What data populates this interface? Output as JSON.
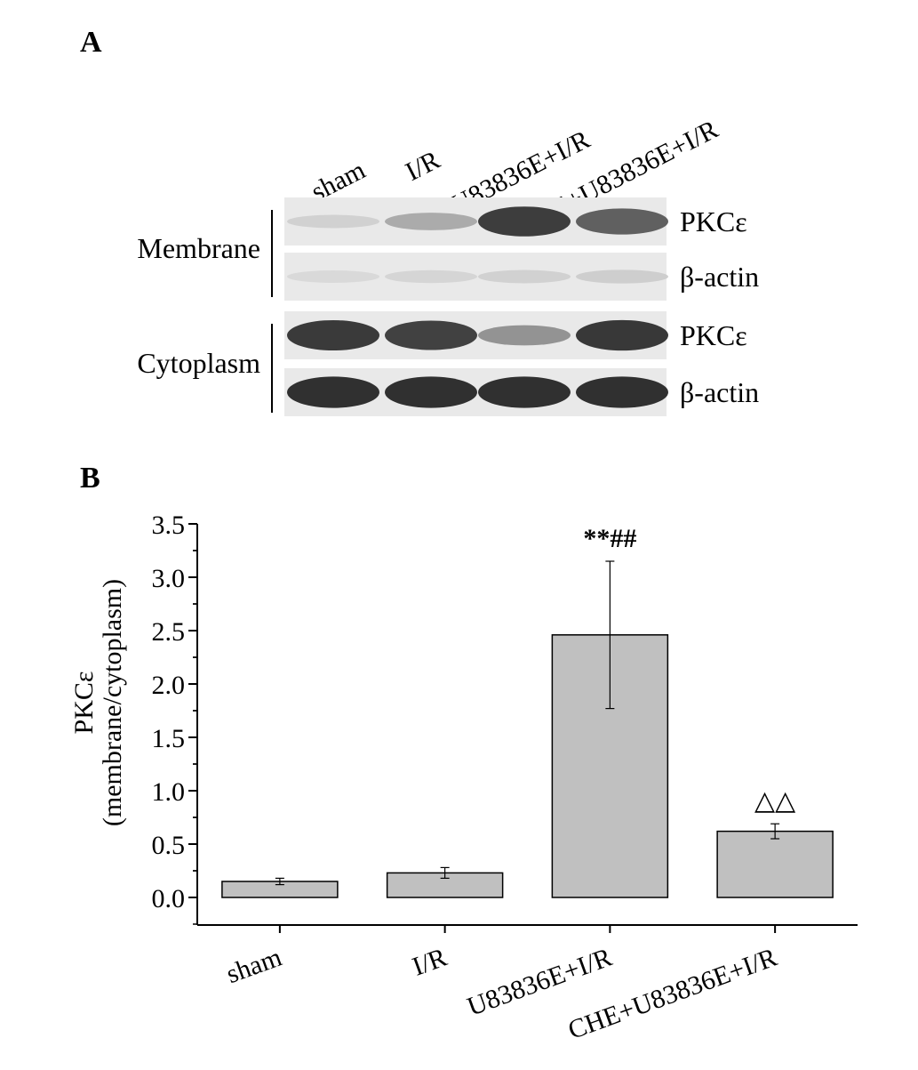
{
  "panel_a": {
    "label": "A",
    "lanes": [
      "sham",
      "I/R",
      "U83836E+I/R",
      "CHE+U83836E+I/R"
    ],
    "groups": [
      {
        "name": "Membrane",
        "rows": [
          {
            "label": "PKCε",
            "intensity": [
              0.12,
              0.32,
              0.9,
              0.72
            ]
          },
          {
            "label": "β-actin",
            "intensity": [
              0.08,
              0.1,
              0.12,
              0.14
            ]
          }
        ]
      },
      {
        "name": "Cytoplasm",
        "rows": [
          {
            "label": "PKCε",
            "intensity": [
              0.92,
              0.88,
              0.45,
              0.93
            ]
          },
          {
            "label": "β-actin",
            "intensity": [
              0.97,
              0.97,
              0.97,
              0.97
            ]
          }
        ]
      }
    ]
  },
  "panel_b": {
    "label": "B"
  },
  "chart_data": {
    "type": "bar",
    "categories": [
      "sham",
      "I/R",
      "U83836E+I/R",
      "CHE+U83836E+I/R"
    ],
    "values": [
      0.15,
      0.23,
      2.46,
      0.62
    ],
    "errors": [
      0.03,
      0.05,
      0.69,
      0.07
    ],
    "annotations": [
      "",
      "",
      "**##",
      "△△"
    ],
    "ylabel_line1": "PKCε",
    "ylabel_line2": "(membrane/cytoplasm)",
    "ylim": [
      -0.25,
      3.5
    ],
    "yticks": [
      "0.0",
      "0.5",
      "1.0",
      "1.5",
      "2.0",
      "2.5",
      "3.0",
      "3.5"
    ],
    "bar_color": "#c0c0c0"
  }
}
